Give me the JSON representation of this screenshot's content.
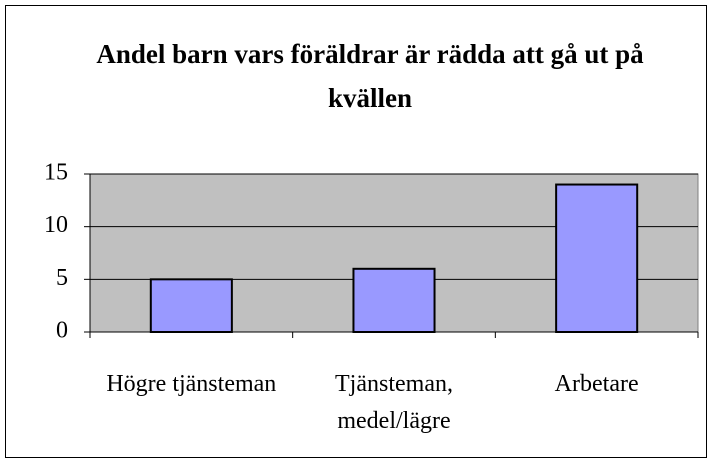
{
  "chart_data": {
    "type": "bar",
    "title": "Andel barn vars föräldrar är rädda att gå ut på kvällen",
    "categories": [
      "Högre tjänsteman",
      "Tjänsteman, medel/lägre",
      "Arbetare"
    ],
    "values": [
      5,
      6,
      14
    ],
    "color": "#9999ff",
    "ylim": [
      0,
      15
    ],
    "yticks": [
      0,
      5,
      10,
      15
    ],
    "grid": true
  }
}
